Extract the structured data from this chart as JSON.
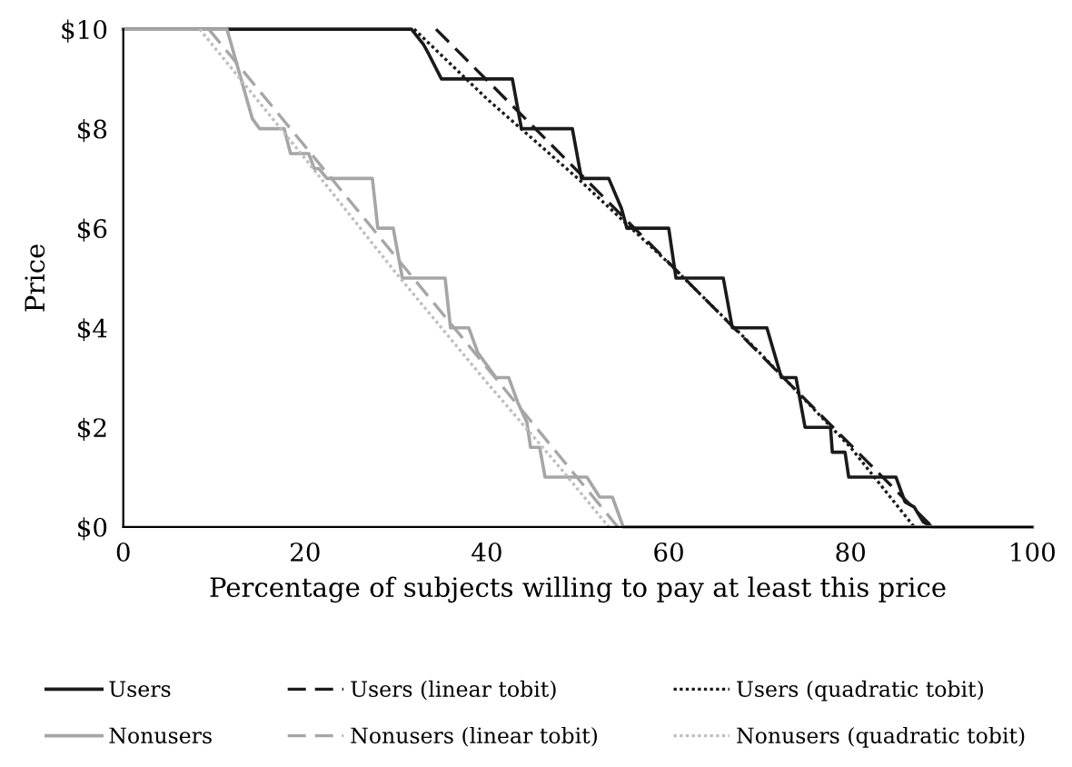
{
  "chart_data": {
    "type": "line",
    "xlabel": "Percentage of subjects willing to pay at least this price",
    "ylabel": "Price",
    "xlim": [
      0,
      100
    ],
    "xticks": [
      0,
      20,
      40,
      60,
      80,
      100
    ],
    "ylim": [
      0,
      10
    ],
    "yticks": [
      {
        "value": 0,
        "label": "$0"
      },
      {
        "value": 2,
        "label": "$2"
      },
      {
        "value": 4,
        "label": "$4"
      },
      {
        "value": 6,
        "label": "$6"
      },
      {
        "value": 8,
        "label": "$8"
      },
      {
        "value": 10,
        "label": "$10"
      }
    ],
    "grid": false,
    "legend": "bottom",
    "marker": "none",
    "series": [
      {
        "name": "Users",
        "color": "#1a1a1a",
        "line_style": "solid",
        "x": [
          0,
          31.7,
          33,
          33.6,
          35,
          42.8,
          43.8,
          49.4,
          50.4,
          53.4,
          54.8,
          55.4,
          60,
          60.8,
          66,
          67,
          70.8,
          72.4,
          74,
          75,
          77.8,
          78,
          79.4,
          79.8,
          85,
          86,
          87,
          88,
          89,
          100
        ],
        "values": [
          10,
          10,
          9.7,
          9.5,
          9,
          9,
          8,
          8,
          7,
          7,
          6.4,
          6,
          6,
          5,
          5,
          4,
          4,
          3,
          3,
          2,
          2,
          1.5,
          1.5,
          1,
          1,
          0.5,
          0.4,
          0.1,
          0,
          0
        ]
      },
      {
        "name": "Users (linear tobit)",
        "color": "#1a1a1a",
        "line_style": "dashed",
        "x": [
          34.4,
          89
        ],
        "values": [
          10,
          0
        ]
      },
      {
        "name": "Users (quadratic tobit)",
        "color": "#1a1a1a",
        "line_style": "dotted",
        "x": [
          32,
          40,
          50,
          60,
          70,
          80,
          87
        ],
        "values": [
          10,
          8.6,
          7.0,
          5.3,
          3.5,
          1.6,
          0
        ]
      },
      {
        "name": "Nonusers",
        "color": "#a6a6a6",
        "line_style": "solid",
        "x": [
          0,
          11.4,
          14.2,
          15,
          17.7,
          18.4,
          20.4,
          21,
          21.5,
          22.4,
          27.4,
          28,
          29.7,
          30.7,
          35.4,
          36,
          38,
          39,
          41,
          42.4,
          43.4,
          44.4,
          44.8,
          45.8,
          46.4,
          51,
          52.4,
          53.8,
          55,
          100
        ],
        "values": [
          10,
          10,
          8.2,
          8,
          8,
          7.5,
          7.5,
          7.2,
          7.2,
          7,
          7,
          6,
          6,
          5,
          5,
          4,
          4,
          3.5,
          3,
          3,
          2.5,
          2.1,
          1.6,
          1.6,
          1,
          1,
          0.6,
          0.6,
          0,
          0
        ]
      },
      {
        "name": "Nonusers (linear tobit)",
        "color": "#a6a6a6",
        "line_style": "dashed",
        "x": [
          9.4,
          54.4
        ],
        "values": [
          10,
          0
        ]
      },
      {
        "name": "Nonusers (quadratic tobit)",
        "color": "#bfbfbf",
        "line_style": "dotted",
        "x": [
          8.4,
          20,
          30,
          40,
          48,
          53.4
        ],
        "values": [
          10,
          7.4,
          5.1,
          2.9,
          1.2,
          0
        ]
      }
    ]
  }
}
